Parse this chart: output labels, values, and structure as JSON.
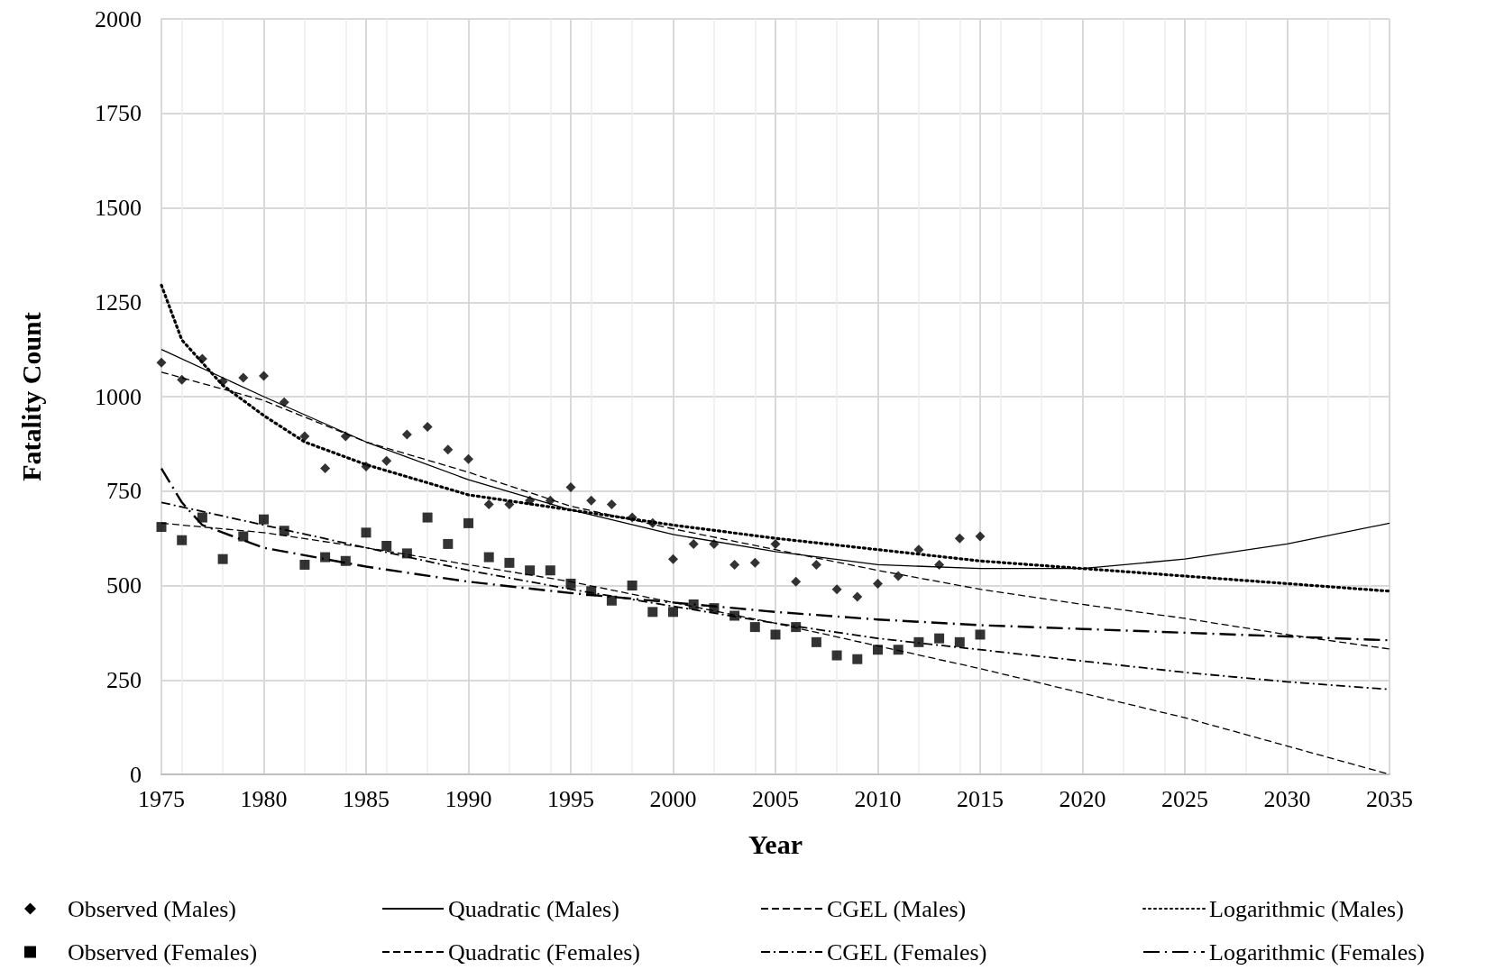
{
  "chart_data": {
    "type": "scatter",
    "xlabel": "Year",
    "ylabel": "Fatality Count",
    "xlim": [
      1975,
      2035
    ],
    "xticks": [
      1975,
      1980,
      1985,
      1990,
      1995,
      2000,
      2005,
      2010,
      2015,
      2020,
      2025,
      2030,
      2035
    ],
    "ylim": [
      0,
      2000
    ],
    "yticks": [
      0,
      250,
      500,
      750,
      1000,
      1250,
      1500,
      1750,
      2000
    ],
    "grid": true,
    "legend": "bottom",
    "x": [
      1975,
      1976,
      1977,
      1978,
      1979,
      1980,
      1981,
      1982,
      1983,
      1984,
      1985,
      1986,
      1987,
      1988,
      1989,
      1990,
      1991,
      1992,
      1993,
      1994,
      1995,
      1996,
      1997,
      1998,
      1999,
      2000,
      2001,
      2002,
      2003,
      2004,
      2005,
      2006,
      2007,
      2008,
      2009,
      2010,
      2011,
      2012,
      2013,
      2014,
      2015
    ],
    "series": [
      {
        "name": "Observed (Males)",
        "type": "scatter",
        "marker": "diamond",
        "color": "#000000",
        "values": [
          1090,
          1045,
          1100,
          1040,
          1050,
          1055,
          985,
          895,
          810,
          895,
          815,
          830,
          900,
          920,
          860,
          835,
          715,
          715,
          725,
          725,
          760,
          725,
          715,
          680,
          665,
          570,
          610,
          610,
          555,
          560,
          610,
          510,
          555,
          490,
          470,
          505,
          525,
          595,
          555,
          625,
          630
        ]
      },
      {
        "name": "Quadratic (Males)",
        "type": "line",
        "marker": "none",
        "line_style": "solid",
        "color": "#000000",
        "x": [
          1975,
          1980,
          1985,
          1990,
          1995,
          2000,
          2005,
          2010,
          2015,
          2020,
          2025,
          2030,
          2035
        ],
        "values": [
          1125,
          1000,
          880,
          780,
          700,
          635,
          590,
          555,
          545,
          545,
          570,
          610,
          665
        ]
      },
      {
        "name": "CGEL (Males)",
        "type": "line",
        "marker": "none",
        "line_style": "dashed",
        "color": "#000000",
        "x": [
          1975,
          1980,
          1985,
          1990,
          1995,
          2000,
          2005,
          2010,
          2015,
          2020,
          2025,
          2030,
          2035
        ],
        "values": [
          1065,
          990,
          880,
          800,
          710,
          650,
          595,
          540,
          490,
          450,
          413,
          370,
          332
        ]
      },
      {
        "name": "Logarithmic (Males)",
        "type": "line",
        "marker": "none",
        "line_style": "dotted",
        "color": "#000000",
        "x": [
          1975,
          1976,
          1977,
          1978,
          1980,
          1982,
          1985,
          1990,
          1995,
          2000,
          2005,
          2010,
          2015,
          2020,
          2025,
          2030,
          2035
        ],
        "values": [
          1295,
          1150,
          1090,
          1030,
          950,
          880,
          820,
          740,
          700,
          660,
          625,
          595,
          565,
          545,
          525,
          505,
          485
        ]
      },
      {
        "name": "Observed (Females)",
        "type": "scatter",
        "marker": "square",
        "color": "#000000",
        "values": [
          655,
          620,
          680,
          570,
          630,
          675,
          645,
          555,
          575,
          565,
          640,
          605,
          585,
          680,
          610,
          665,
          575,
          560,
          540,
          540,
          505,
          485,
          460,
          500,
          430,
          430,
          450,
          440,
          420,
          390,
          370,
          390,
          350,
          315,
          305,
          330,
          330,
          350,
          360,
          350,
          370
        ]
      },
      {
        "name": "Quadratic (Females)",
        "type": "line",
        "marker": "none",
        "line_style": "dashed",
        "color": "#000000",
        "x": [
          1975,
          1980,
          1985,
          1990,
          1995,
          2000,
          2005,
          2010,
          2015,
          2020,
          2025,
          2030,
          2035
        ],
        "values": [
          665,
          640,
          600,
          555,
          510,
          455,
          400,
          340,
          280,
          215,
          150,
          75,
          0
        ]
      },
      {
        "name": "CGEL (Females)",
        "type": "line",
        "marker": "none",
        "line_style": "dashdot",
        "color": "#000000",
        "x": [
          1975,
          1980,
          1985,
          1990,
          1995,
          2000,
          2005,
          2010,
          2015,
          2020,
          2025,
          2030,
          2035
        ],
        "values": [
          720,
          660,
          600,
          540,
          490,
          445,
          400,
          360,
          330,
          300,
          270,
          245,
          225
        ]
      },
      {
        "name": "Logarithmic (Females)",
        "type": "line",
        "marker": "none",
        "line_style": "longdashdot",
        "color": "#000000",
        "x": [
          1975,
          1976,
          1977,
          1980,
          1985,
          1990,
          1995,
          2000,
          2005,
          2010,
          2015,
          2020,
          2025,
          2030,
          2035
        ],
        "values": [
          810,
          720,
          660,
          600,
          550,
          510,
          480,
          455,
          430,
          410,
          395,
          385,
          375,
          365,
          355
        ]
      }
    ]
  }
}
